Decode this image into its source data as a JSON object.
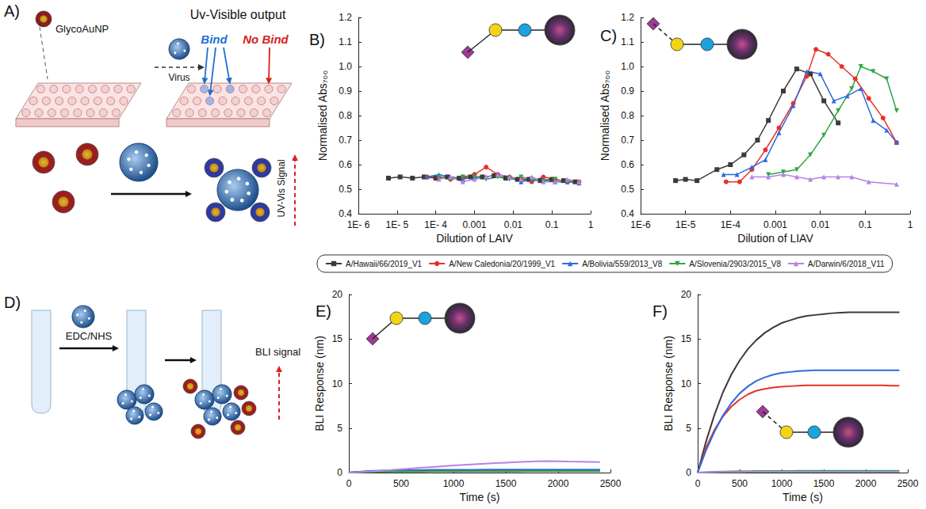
{
  "chart_data": [
    {
      "title": "B)",
      "type": "line",
      "x_label": "Dilution of LAIV",
      "y_label": "Normalised Abs₇₀₀",
      "log": "x",
      "xlim": [
        1e-06,
        1
      ],
      "xticks": [
        {
          "value": 1e-06,
          "label": "1E- 6"
        },
        {
          "value": 1e-05,
          "label": "1E- 5"
        },
        {
          "value": 0.0001,
          "label": "1E- 4"
        },
        0.001,
        0.01,
        0.1,
        1
      ],
      "ylim": [
        0.4,
        1.2
      ],
      "yticks": [
        0.4,
        0.5,
        0.6,
        0.7,
        0.8,
        0.9,
        {
          "value": 1,
          "label": "1.0"
        },
        1.1,
        1.2
      ],
      "grid": false,
      "legend": "bottom",
      "series": [
        {
          "name": "A/Hawaii/66/2019_V1",
          "color": "#3b3b3b",
          "marker": "square",
          "x": [
            6e-06,
            1.2e-05,
            2.5e-05,
            5e-05,
            0.0001,
            0.0002,
            0.0004,
            0.0008,
            0.0016,
            0.0032,
            0.0064,
            0.0128,
            0.0256,
            0.05,
            0.1,
            0.2,
            0.4
          ],
          "values": [
            0.545,
            0.55,
            0.545,
            0.55,
            0.545,
            0.55,
            0.545,
            0.55,
            0.55,
            0.555,
            0.545,
            0.54,
            0.54,
            0.535,
            0.54,
            0.535,
            0.53
          ]
        },
        {
          "name": "A/New Caledonia/20/1999_V1",
          "color": "#e8312a",
          "marker": "circle",
          "x": [
            6e-05,
            0.00012,
            0.00024,
            0.0005,
            0.001,
            0.002,
            0.004,
            0.008,
            0.016,
            0.03,
            0.06,
            0.12,
            0.25,
            0.5
          ],
          "values": [
            0.55,
            0.55,
            0.54,
            0.55,
            0.56,
            0.59,
            0.56,
            0.55,
            0.54,
            0.53,
            0.55,
            0.54,
            0.53,
            0.53
          ]
        },
        {
          "name": "A/Bolivia/559/2013_V8",
          "color": "#2c6ae0",
          "marker": "triangle",
          "x": [
            6e-05,
            0.00012,
            0.00024,
            0.0005,
            0.001,
            0.002,
            0.004,
            0.008,
            0.016,
            0.03,
            0.06,
            0.12,
            0.25,
            0.5
          ],
          "values": [
            0.55,
            0.56,
            0.55,
            0.54,
            0.55,
            0.55,
            0.56,
            0.55,
            0.53,
            0.54,
            0.54,
            0.53,
            0.53,
            0.525
          ]
        },
        {
          "name": "A/Slovenia/2903/2015_V8",
          "color": "#2ca642",
          "marker": "triangle-down",
          "x": [
            0.00012,
            0.00024,
            0.0005,
            0.001,
            0.002,
            0.004,
            0.008,
            0.016,
            0.03,
            0.06,
            0.12,
            0.25,
            0.5
          ],
          "values": [
            0.55,
            0.54,
            0.55,
            0.55,
            0.54,
            0.55,
            0.54,
            0.55,
            0.54,
            0.53,
            0.54,
            0.53,
            0.525
          ]
        },
        {
          "name": "A/Darwin/6/2018_V11",
          "color": "#b584e0",
          "marker": "triangle",
          "x": [
            0.00012,
            0.00024,
            0.0005,
            0.001,
            0.002,
            0.004,
            0.008,
            0.016,
            0.03,
            0.06,
            0.12,
            0.25,
            0.5
          ],
          "values": [
            0.54,
            0.55,
            0.53,
            0.54,
            0.55,
            0.56,
            0.55,
            0.54,
            0.55,
            0.53,
            0.53,
            0.54,
            0.53
          ]
        }
      ]
    },
    {
      "title": "C)",
      "type": "line",
      "x_label": "Dilution of LIAV",
      "y_label": "Normalised Abs₇₀₀",
      "log": "x",
      "xlim": [
        1e-06,
        1
      ],
      "xticks": [
        {
          "value": 1e-06,
          "label": "1E-6"
        },
        {
          "value": 1e-05,
          "label": "1E-5"
        },
        {
          "value": 0.0001,
          "label": "1E-4"
        },
        0.001,
        0.01,
        0.1,
        1
      ],
      "ylim": [
        0.4,
        1.2
      ],
      "yticks": [
        0.4,
        0.5,
        0.6,
        0.7,
        0.8,
        0.9,
        {
          "value": 1,
          "label": "1.0"
        },
        1.1,
        1.2
      ],
      "grid": false,
      "legend": "bottom",
      "series": [
        {
          "name": "A/Hawaii/66/2019_V1",
          "color": "#3b3b3b",
          "marker": "square",
          "x": [
            6e-06,
            1e-05,
            1.8e-05,
            5e-05,
            0.0001,
            0.0002,
            0.0004,
            0.0007,
            0.0015,
            0.003,
            0.006,
            0.012,
            0.025
          ],
          "values": [
            0.535,
            0.54,
            0.535,
            0.58,
            0.6,
            0.64,
            0.7,
            0.78,
            0.9,
            0.99,
            0.97,
            0.86,
            0.77
          ]
        },
        {
          "name": "A/New Caledonia/20/1999_V1",
          "color": "#e8312a",
          "marker": "circle",
          "x": [
            8e-05,
            0.00016,
            0.0003,
            0.0006,
            0.0012,
            0.0025,
            0.005,
            0.008,
            0.015,
            0.03,
            0.06,
            0.12,
            0.25,
            0.5
          ],
          "values": [
            0.53,
            0.53,
            0.58,
            0.66,
            0.75,
            0.85,
            0.96,
            1.07,
            1.05,
            1.0,
            0.95,
            0.87,
            0.79,
            0.69
          ]
        },
        {
          "name": "A/Bolivia/559/2013_V8",
          "color": "#2c6ae0",
          "marker": "triangle",
          "x": [
            7e-05,
            0.00014,
            0.0003,
            0.0006,
            0.0012,
            0.0025,
            0.005,
            0.01,
            0.02,
            0.04,
            0.08,
            0.15,
            0.3,
            0.5
          ],
          "values": [
            0.56,
            0.56,
            0.59,
            0.62,
            0.73,
            0.84,
            0.98,
            0.97,
            0.86,
            0.88,
            0.91,
            0.78,
            0.74,
            0.69
          ]
        },
        {
          "name": "A/Slovenia/2903/2015_V8",
          "color": "#2ca642",
          "marker": "triangle-down",
          "x": [
            0.0007,
            0.0015,
            0.003,
            0.006,
            0.012,
            0.025,
            0.05,
            0.08,
            0.15,
            0.3,
            0.5
          ],
          "values": [
            0.56,
            0.57,
            0.58,
            0.64,
            0.72,
            0.82,
            0.91,
            1.0,
            0.98,
            0.95,
            0.82
          ]
        },
        {
          "name": "A/Darwin/6/2018_V11",
          "color": "#b584e0",
          "marker": "triangle",
          "x": [
            0.0003,
            0.0007,
            0.0015,
            0.003,
            0.006,
            0.012,
            0.025,
            0.05,
            0.12,
            0.5
          ],
          "values": [
            0.55,
            0.55,
            0.56,
            0.55,
            0.54,
            0.55,
            0.55,
            0.55,
            0.53,
            0.52
          ]
        }
      ]
    },
    {
      "title": "E)",
      "type": "line",
      "x_label": "Time (s)",
      "y_label": "BLI Response (nm)",
      "xlim": [
        0,
        2500
      ],
      "xticks": [
        0,
        500,
        1000,
        1500,
        2000,
        2500
      ],
      "ylim": [
        0,
        20
      ],
      "yticks": [
        0,
        5,
        10,
        15,
        20
      ],
      "grid": false,
      "x": [
        0,
        100,
        200,
        300,
        400,
        500,
        600,
        700,
        800,
        900,
        1000,
        1100,
        1200,
        1300,
        1400,
        1500,
        1600,
        1700,
        1800,
        1900,
        2000,
        2100,
        2200,
        2300,
        2400
      ],
      "series": [
        {
          "name": "A/Hawaii/66/2019_V1",
          "color": "#3b3b3b",
          "values": [
            0,
            0.05,
            0.1,
            0.13,
            0.15,
            0.17,
            0.18,
            0.19,
            0.2,
            0.2,
            0.2,
            0.21,
            0.21,
            0.21,
            0.21,
            0.21,
            0.21,
            0.21,
            0.22,
            0.22,
            0.22,
            0.22,
            0.22,
            0.22,
            0.22
          ]
        },
        {
          "name": "A/New Caledonia/20/1999_V1",
          "color": "#e8312a",
          "values": [
            0,
            0.08,
            0.14,
            0.18,
            0.2,
            0.22,
            0.23,
            0.24,
            0.25,
            0.25,
            0.26,
            0.26,
            0.26,
            0.26,
            0.27,
            0.27,
            0.27,
            0.27,
            0.27,
            0.27,
            0.27,
            0.27,
            0.27,
            0.27,
            0.27
          ]
        },
        {
          "name": "A/Bolivia/559/2013_V8",
          "color": "#2c6ae0",
          "values": [
            0,
            0.1,
            0.17,
            0.22,
            0.25,
            0.27,
            0.29,
            0.3,
            0.31,
            0.31,
            0.32,
            0.32,
            0.32,
            0.33,
            0.33,
            0.33,
            0.33,
            0.33,
            0.33,
            0.33,
            0.33,
            0.33,
            0.33,
            0.33,
            0.33
          ]
        },
        {
          "name": "A/Slovenia/2903/2015_V8",
          "color": "#2ca642",
          "values": [
            0,
            0.04,
            0.07,
            0.09,
            0.1,
            0.11,
            0.12,
            0.12,
            0.13,
            0.13,
            0.13,
            0.14,
            0.14,
            0.14,
            0.14,
            0.14,
            0.14,
            0.15,
            0.15,
            0.15,
            0.15,
            0.15,
            0.15,
            0.15,
            0.15
          ]
        },
        {
          "name": "A/Darwin/6/2018_V11",
          "color": "#b584e0",
          "values": [
            0,
            0.05,
            0.12,
            0.2,
            0.28,
            0.37,
            0.46,
            0.55,
            0.63,
            0.71,
            0.79,
            0.87,
            0.94,
            1.0,
            1.06,
            1.12,
            1.17,
            1.22,
            1.27,
            1.29,
            1.27,
            1.24,
            1.22,
            1.2,
            1.18
          ]
        }
      ]
    },
    {
      "title": "F)",
      "type": "line",
      "x_label": "Time (s)",
      "y_label": "BLI Response (nm)",
      "xlim": [
        0,
        2500
      ],
      "xticks": [
        0,
        500,
        1000,
        1500,
        2000,
        2500
      ],
      "ylim": [
        0,
        20
      ],
      "yticks": [
        0,
        5,
        10,
        15,
        20
      ],
      "grid": false,
      "x": [
        0,
        100,
        200,
        300,
        400,
        500,
        600,
        700,
        800,
        900,
        1000,
        1100,
        1200,
        1300,
        1400,
        1500,
        1600,
        1700,
        1800,
        1900,
        2000,
        2100,
        2200,
        2300,
        2400
      ],
      "series": [
        {
          "name": "A/Hawaii/66/2019_V1",
          "color": "#3b3b3b",
          "values": [
            0,
            3.5,
            6.5,
            9.0,
            11.0,
            12.6,
            13.9,
            14.9,
            15.7,
            16.3,
            16.8,
            17.1,
            17.4,
            17.6,
            17.7,
            17.8,
            17.9,
            17.95,
            18.0,
            18.0,
            18.0,
            18.0,
            18.0,
            18.0,
            18.0
          ]
        },
        {
          "name": "A/New Caledonia/20/1999_V1",
          "color": "#e8312a",
          "values": [
            0,
            2.8,
            4.8,
            6.3,
            7.4,
            8.2,
            8.8,
            9.2,
            9.4,
            9.55,
            9.65,
            9.7,
            9.75,
            9.8,
            9.8,
            9.8,
            9.8,
            9.8,
            9.8,
            9.8,
            9.8,
            9.8,
            9.8,
            9.75,
            9.75
          ]
        },
        {
          "name": "A/Bolivia/559/2013_V8",
          "color": "#2c6ae0",
          "values": [
            0,
            2.5,
            4.6,
            6.4,
            7.8,
            8.9,
            9.7,
            10.3,
            10.7,
            11.0,
            11.2,
            11.3,
            11.4,
            11.45,
            11.5,
            11.5,
            11.5,
            11.5,
            11.5,
            11.5,
            11.5,
            11.5,
            11.5,
            11.5,
            11.5
          ]
        },
        {
          "name": "A/Slovenia/2903/2015_V8",
          "color": "#2ca642",
          "values": [
            0,
            0.05,
            0.1,
            0.12,
            0.14,
            0.15,
            0.16,
            0.17,
            0.17,
            0.18,
            0.18,
            0.18,
            0.19,
            0.19,
            0.19,
            0.19,
            0.2,
            0.2,
            0.2,
            0.2,
            0.2,
            0.2,
            0.2,
            0.2,
            0.2
          ]
        },
        {
          "name": "A/Darwin/6/2018_V11",
          "color": "#b584e0",
          "values": [
            0,
            0.03,
            0.05,
            0.06,
            0.07,
            0.07,
            0.08,
            0.08,
            0.08,
            0.09,
            0.09,
            0.09,
            0.09,
            0.1,
            0.1,
            0.1,
            0.1,
            0.1,
            0.1,
            0.1,
            0.1,
            0.1,
            0.1,
            0.1,
            0.1
          ]
        }
      ]
    }
  ],
  "schematics": {
    "A": {
      "letter": "A)",
      "particle": "GlycoAuNP",
      "virus": "Virus",
      "output": "Uv-Visible output",
      "bind": "Bind",
      "no_bind": "No Bind",
      "signal": "UV-Vis Signal"
    },
    "D": {
      "letter": "D)",
      "coupling": "EDC/NHS",
      "signal": "BLI signal"
    }
  }
}
